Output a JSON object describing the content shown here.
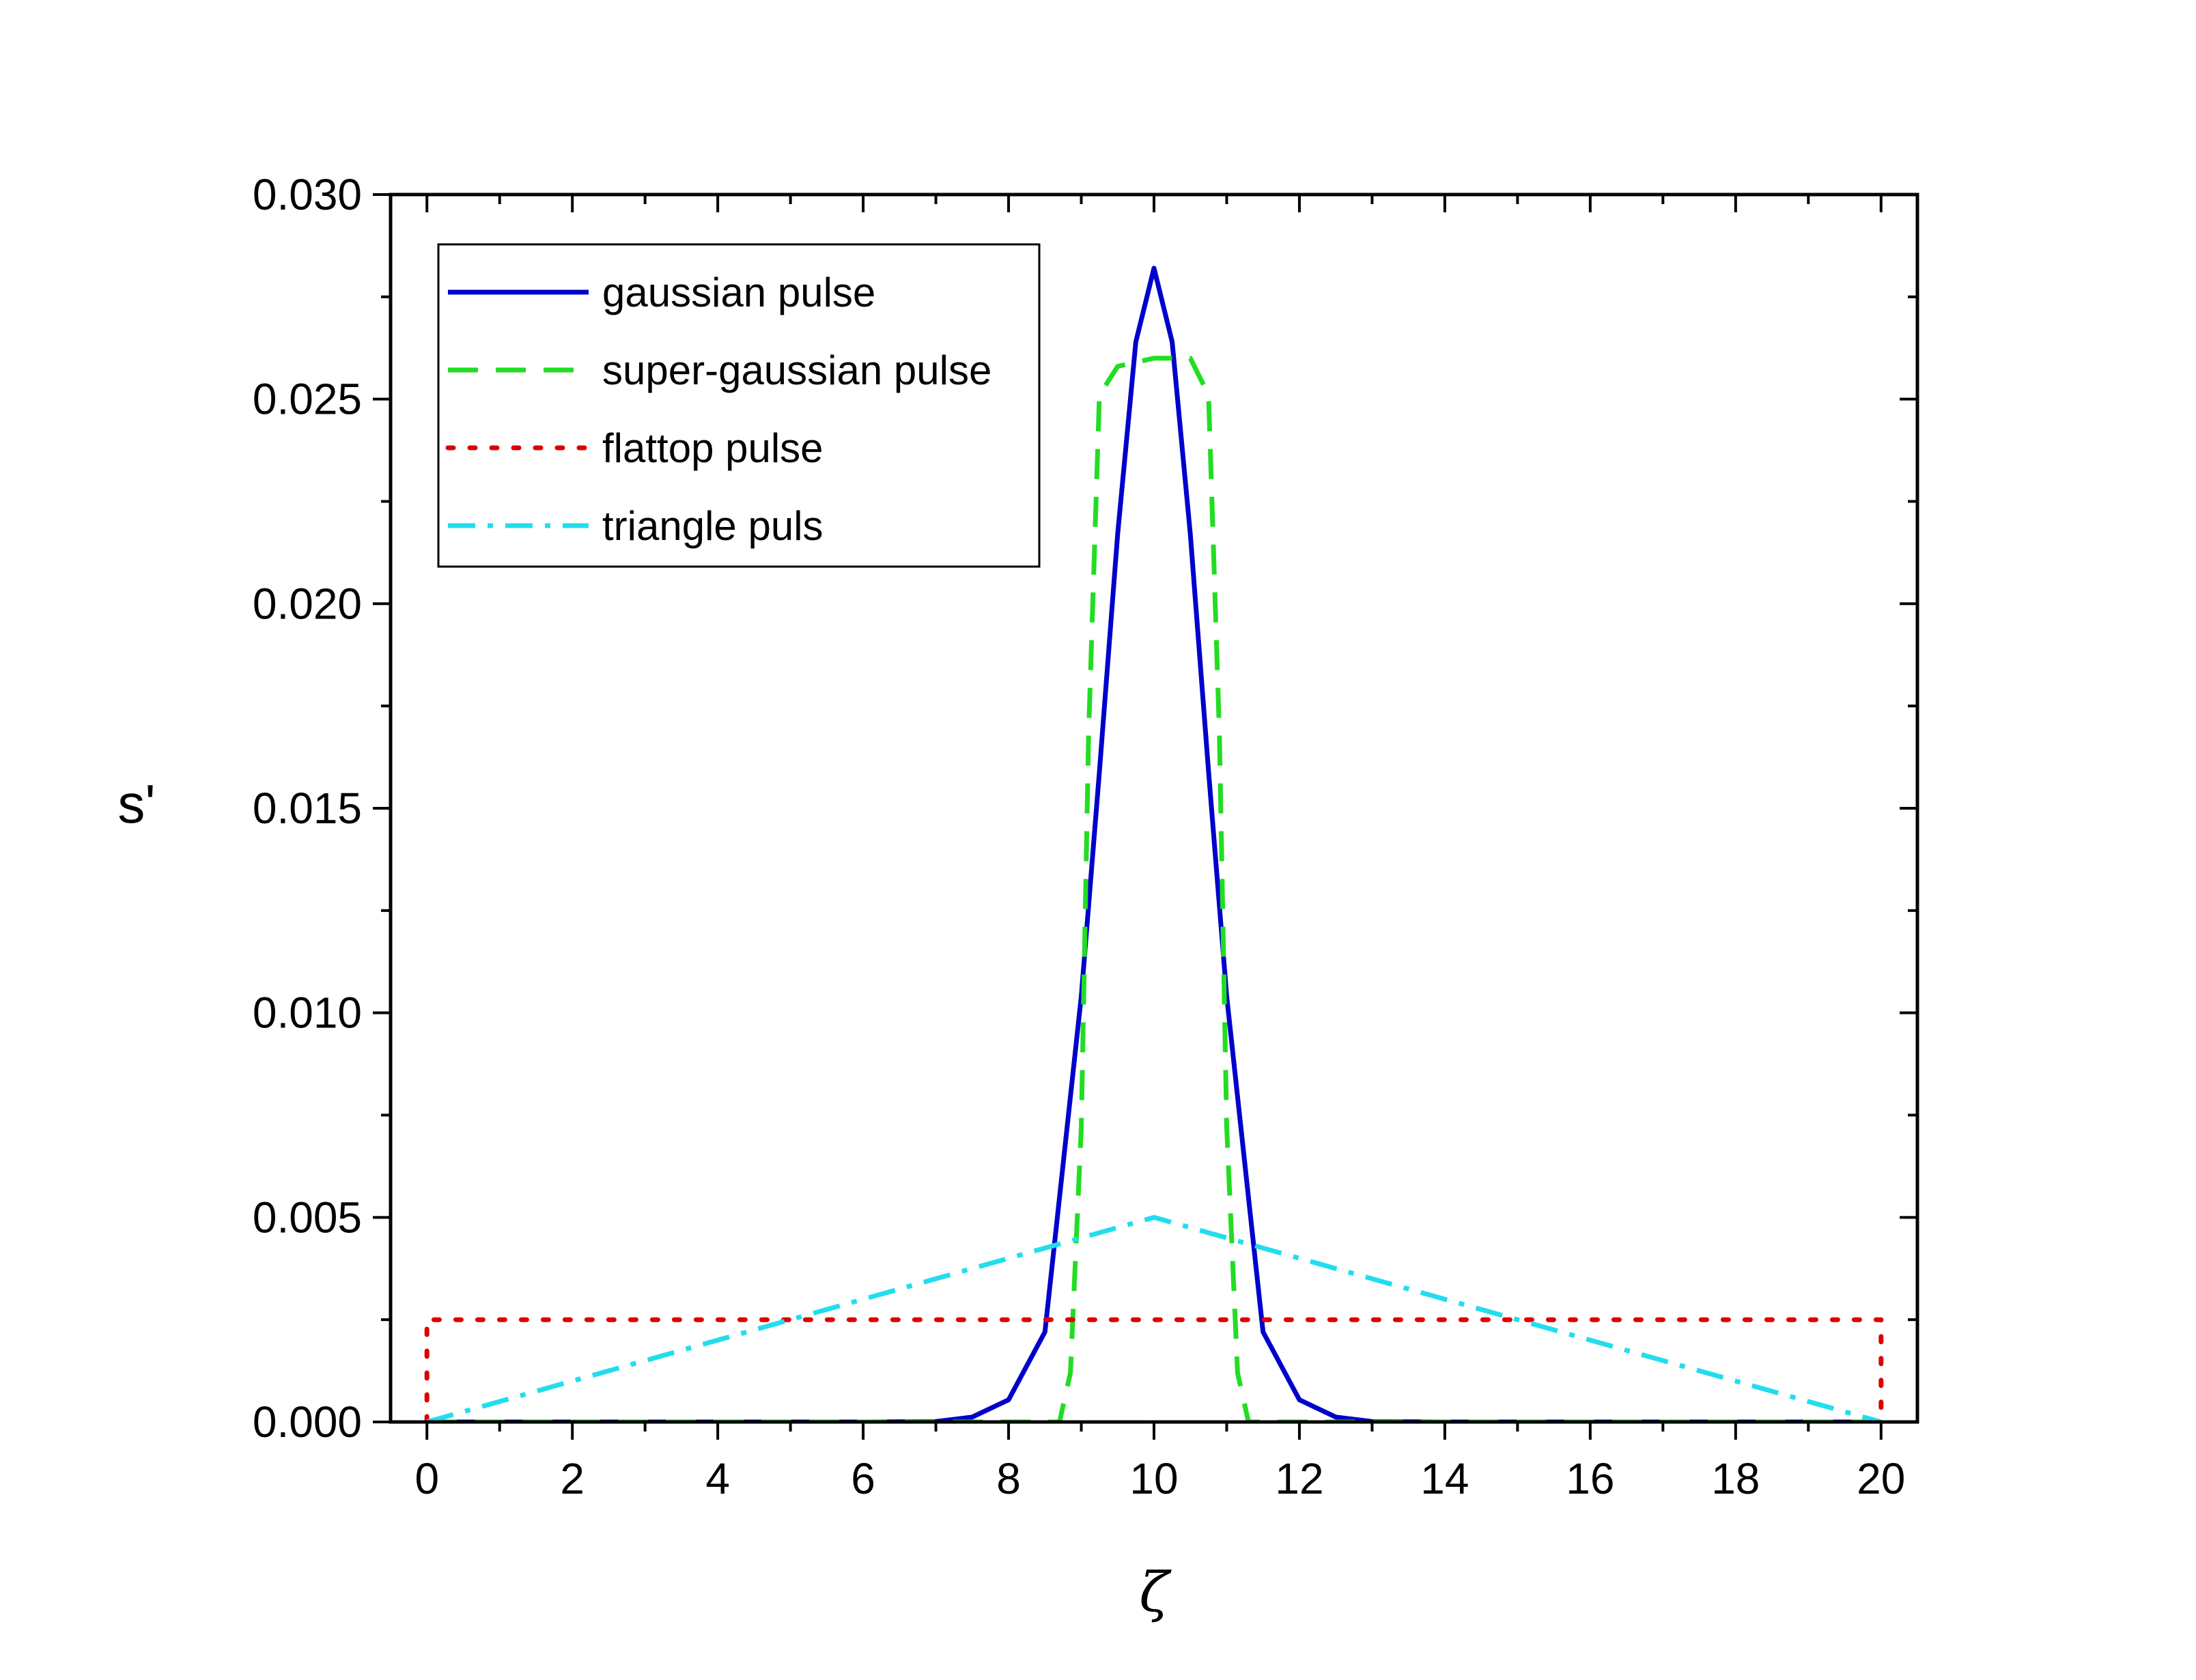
{
  "chart_data": {
    "type": "line",
    "title": "",
    "xlabel": "ζ",
    "ylabel": "s'",
    "xlim": [
      -0.5,
      20.5
    ],
    "ylim": [
      0,
      0.03
    ],
    "x_ticks": [
      0,
      2,
      4,
      6,
      8,
      10,
      12,
      14,
      16,
      18,
      20
    ],
    "x_tick_labels": [
      "0",
      "2",
      "4",
      "6",
      "8",
      "10",
      "12",
      "14",
      "16",
      "18",
      "20"
    ],
    "y_ticks": [
      0,
      0.005,
      0.01,
      0.015,
      0.02,
      0.025,
      0.03
    ],
    "y_tick_labels": [
      "0.000",
      "0.005",
      "0.010",
      "0.015",
      "0.020",
      "0.025",
      "0.030"
    ],
    "grid": false,
    "legend_position": "top-left",
    "series": [
      {
        "name": "gaussian pulse",
        "color": "#0000CC",
        "style": "solid",
        "x": [
          0,
          6,
          7,
          7.5,
          8,
          8.5,
          9,
          9.25,
          9.5,
          9.75,
          10,
          10.25,
          10.5,
          10.75,
          11,
          11.5,
          12,
          12.5,
          13,
          14,
          20
        ],
        "y": [
          0,
          0,
          1e-05,
          0.00012,
          0.00054,
          0.0022,
          0.0104,
          0.0159,
          0.0217,
          0.0264,
          0.0282,
          0.0264,
          0.0217,
          0.0159,
          0.0104,
          0.0022,
          0.00054,
          0.00012,
          1e-05,
          0,
          0
        ]
      },
      {
        "name": "super-gaussian pulse",
        "color": "#22DD22",
        "style": "dashed",
        "x": [
          0,
          8.7,
          8.85,
          9.0,
          9.1,
          9.25,
          9.5,
          10,
          10.5,
          10.75,
          10.9,
          11.0,
          11.15,
          11.3,
          20
        ],
        "y": [
          0,
          0,
          0.0012,
          0.0072,
          0.0168,
          0.0251,
          0.0258,
          0.026,
          0.026,
          0.0251,
          0.0168,
          0.0072,
          0.0012,
          0,
          0
        ]
      },
      {
        "name": "flattop pulse",
        "color": "#DD0000",
        "style": "dotted",
        "x": [
          0,
          0,
          20,
          20
        ],
        "y": [
          0,
          0.0025,
          0.0025,
          0
        ]
      },
      {
        "name": "triangle puls",
        "color": "#22DDEE",
        "style": "dashdot",
        "x": [
          0,
          10,
          20
        ],
        "y": [
          0,
          0.005,
          0
        ]
      }
    ]
  }
}
